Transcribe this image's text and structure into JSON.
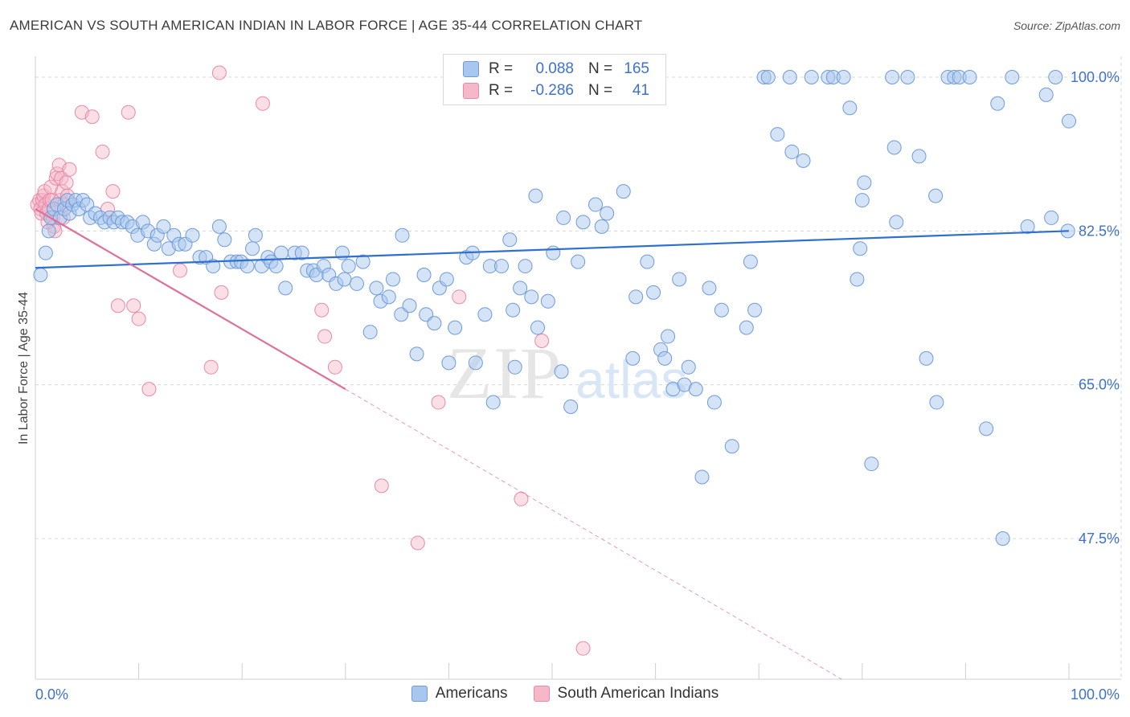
{
  "header": {
    "title": "AMERICAN VS SOUTH AMERICAN INDIAN IN LABOR FORCE | AGE 35-44 CORRELATION CHART",
    "source": "Source: ZipAtlas.com"
  },
  "watermark": {
    "zip": "ZIP",
    "atlas": "atlas"
  },
  "legend": {
    "rows": [
      {
        "r_label": "R =",
        "r_value": "0.088",
        "n_label": "N =",
        "n_value": "165"
      },
      {
        "r_label": "R =",
        "r_value": "-0.286",
        "n_label": "N =",
        "n_value": "41"
      }
    ]
  },
  "bottom_legend": {
    "americans": "Americans",
    "sai": "South American Indians"
  },
  "colors": {
    "americans_fill": "#a9c7ee",
    "americans_stroke": "#6f9bd8",
    "americans_line": "#2f6fcd",
    "sai_fill": "#f5b8c9",
    "sai_stroke": "#e98aa6",
    "sai_line": "#e0709a",
    "grid": "#d8d8d8",
    "tick_label": "#3d72cc"
  },
  "chart_data": {
    "type": "scatter",
    "title": "AMERICAN VS SOUTH AMERICAN INDIAN IN LABOR FORCE | AGE 35-44 CORRELATION CHART",
    "xlabel": "",
    "ylabel": "In Labor Force | Age 35-44",
    "xlim": [
      0,
      100
    ],
    "ylim": [
      30,
      101.5
    ],
    "x_tick_labels": [
      "0.0%",
      "100.0%"
    ],
    "y_ticks": [
      47.5,
      65.0,
      82.5,
      100.0
    ],
    "y_tick_labels": [
      "47.5%",
      "65.0%",
      "82.5%",
      "100.0%"
    ],
    "grid": true,
    "legend_position": "top-center",
    "series": [
      {
        "name": "Americans",
        "R": 0.088,
        "N": 165,
        "trend": {
          "x": [
            0,
            100
          ],
          "y": [
            78.3,
            82.5
          ],
          "style": "solid"
        },
        "points": [
          [
            0.5,
            77.5
          ],
          [
            1.0,
            80.0
          ],
          [
            1.3,
            82.5
          ],
          [
            1.5,
            84.0
          ],
          [
            1.8,
            85.0
          ],
          [
            2.1,
            85.5
          ],
          [
            2.4,
            84.0
          ],
          [
            2.8,
            85.0
          ],
          [
            3.1,
            86.0
          ],
          [
            3.3,
            84.5
          ],
          [
            3.6,
            85.5
          ],
          [
            3.9,
            86.0
          ],
          [
            4.2,
            85.0
          ],
          [
            4.6,
            86.0
          ],
          [
            5.0,
            85.5
          ],
          [
            5.3,
            84.0
          ],
          [
            5.8,
            84.5
          ],
          [
            6.3,
            84.0
          ],
          [
            6.7,
            83.5
          ],
          [
            7.2,
            84.0
          ],
          [
            7.6,
            83.5
          ],
          [
            8.0,
            84.0
          ],
          [
            8.4,
            83.5
          ],
          [
            8.9,
            83.5
          ],
          [
            9.4,
            83.0
          ],
          [
            9.9,
            82.0
          ],
          [
            10.4,
            83.5
          ],
          [
            10.9,
            82.5
          ],
          [
            11.5,
            81.0
          ],
          [
            11.8,
            82.0
          ],
          [
            12.4,
            83.0
          ],
          [
            12.9,
            80.5
          ],
          [
            13.4,
            82.0
          ],
          [
            13.9,
            81.0
          ],
          [
            14.5,
            81.0
          ],
          [
            15.2,
            82.0
          ],
          [
            15.9,
            79.5
          ],
          [
            16.5,
            79.5
          ],
          [
            17.2,
            78.5
          ],
          [
            17.8,
            83.0
          ],
          [
            18.3,
            81.5
          ],
          [
            18.9,
            79.0
          ],
          [
            19.5,
            79.0
          ],
          [
            19.9,
            79.0
          ],
          [
            20.5,
            78.5
          ],
          [
            21.0,
            80.5
          ],
          [
            21.3,
            82.0
          ],
          [
            21.9,
            78.5
          ],
          [
            22.5,
            79.5
          ],
          [
            22.8,
            79.0
          ],
          [
            23.3,
            78.5
          ],
          [
            23.8,
            80.0
          ],
          [
            24.2,
            76.0
          ],
          [
            25.1,
            80.0
          ],
          [
            25.8,
            80.0
          ],
          [
            26.3,
            78.0
          ],
          [
            26.9,
            78.0
          ],
          [
            27.2,
            77.5
          ],
          [
            27.9,
            78.5
          ],
          [
            28.4,
            77.5
          ],
          [
            29.1,
            76.5
          ],
          [
            29.7,
            80.0
          ],
          [
            29.9,
            77.0
          ],
          [
            30.3,
            78.5
          ],
          [
            31.1,
            76.5
          ],
          [
            31.7,
            79.0
          ],
          [
            32.4,
            71.0
          ],
          [
            33.0,
            76.0
          ],
          [
            33.4,
            74.5
          ],
          [
            34.2,
            75.0
          ],
          [
            34.6,
            77.0
          ],
          [
            35.4,
            73.0
          ],
          [
            35.5,
            82.0
          ],
          [
            36.2,
            74.0
          ],
          [
            36.9,
            68.5
          ],
          [
            37.6,
            77.5
          ],
          [
            37.8,
            73.0
          ],
          [
            38.6,
            72.0
          ],
          [
            39.1,
            76.0
          ],
          [
            39.8,
            77.0
          ],
          [
            40.0,
            67.5
          ],
          [
            40.6,
            71.5
          ],
          [
            41.7,
            79.5
          ],
          [
            42.3,
            80.0
          ],
          [
            42.6,
            67.5
          ],
          [
            43.5,
            73.0
          ],
          [
            44.0,
            78.5
          ],
          [
            44.3,
            63.0
          ],
          [
            45.1,
            78.5
          ],
          [
            45.9,
            81.5
          ],
          [
            46.2,
            73.5
          ],
          [
            46.4,
            67.0
          ],
          [
            46.9,
            76.0
          ],
          [
            47.4,
            78.5
          ],
          [
            48.0,
            75.0
          ],
          [
            48.4,
            86.5
          ],
          [
            48.6,
            71.5
          ],
          [
            49.6,
            74.5
          ],
          [
            50.1,
            80.0
          ],
          [
            50.9,
            66.5
          ],
          [
            51.1,
            84.0
          ],
          [
            51.8,
            62.5
          ],
          [
            52.5,
            79.0
          ],
          [
            53.0,
            83.5
          ],
          [
            54.2,
            85.5
          ],
          [
            54.8,
            83.0
          ],
          [
            55.3,
            84.5
          ],
          [
            56.9,
            87.0
          ],
          [
            57.8,
            68.0
          ],
          [
            58.1,
            75.0
          ],
          [
            59.2,
            79.0
          ],
          [
            59.8,
            75.5
          ],
          [
            60.5,
            69.0
          ],
          [
            60.9,
            68.0
          ],
          [
            61.2,
            70.5
          ],
          [
            61.7,
            64.5
          ],
          [
            62.3,
            77.0
          ],
          [
            62.8,
            65.0
          ],
          [
            63.2,
            67.0
          ],
          [
            63.9,
            64.5
          ],
          [
            64.5,
            54.5
          ],
          [
            65.2,
            76.0
          ],
          [
            65.7,
            63.0
          ],
          [
            66.4,
            73.5
          ],
          [
            67.4,
            58.0
          ],
          [
            68.8,
            71.5
          ],
          [
            69.2,
            79.0
          ],
          [
            69.6,
            73.5
          ],
          [
            70.5,
            100.0
          ],
          [
            70.9,
            100.0
          ],
          [
            71.8,
            93.5
          ],
          [
            73.0,
            100.0
          ],
          [
            73.2,
            91.5
          ],
          [
            74.3,
            90.5
          ],
          [
            75.1,
            100.0
          ],
          [
            76.7,
            100.0
          ],
          [
            77.2,
            100.0
          ],
          [
            78.2,
            100.0
          ],
          [
            78.8,
            96.5
          ],
          [
            79.5,
            77.0
          ],
          [
            79.8,
            80.5
          ],
          [
            80.0,
            86.0
          ],
          [
            80.2,
            88.0
          ],
          [
            80.9,
            56.0
          ],
          [
            82.9,
            100.0
          ],
          [
            83.1,
            92.0
          ],
          [
            83.3,
            83.5
          ],
          [
            84.4,
            100.0
          ],
          [
            85.5,
            91.0
          ],
          [
            86.2,
            68.0
          ],
          [
            87.1,
            86.5
          ],
          [
            87.2,
            63.0
          ],
          [
            88.3,
            100.0
          ],
          [
            88.9,
            100.0
          ],
          [
            89.4,
            100.0
          ],
          [
            90.4,
            100.0
          ],
          [
            92.0,
            60.0
          ],
          [
            93.1,
            97.0
          ],
          [
            93.6,
            47.5
          ],
          [
            94.5,
            100.0
          ],
          [
            96.0,
            83.0
          ],
          [
            97.8,
            98.0
          ],
          [
            98.3,
            84.0
          ],
          [
            98.7,
            100.0
          ],
          [
            99.9,
            82.5
          ],
          [
            100.0,
            95.0
          ]
        ]
      },
      {
        "name": "South American Indians",
        "R": -0.286,
        "N": 41,
        "trend": {
          "x": [
            0,
            30,
            78
          ],
          "y": [
            85.0,
            64.5,
            31.5
          ],
          "style": "solid-then-dashed",
          "solid_until_x": 30
        },
        "points": [
          [
            0.2,
            85.5
          ],
          [
            0.4,
            86.0
          ],
          [
            0.5,
            85.0
          ],
          [
            0.6,
            84.5
          ],
          [
            0.7,
            86.0
          ],
          [
            0.8,
            86.5
          ],
          [
            0.9,
            87.0
          ],
          [
            1.0,
            85.5
          ],
          [
            1.1,
            84.5
          ],
          [
            1.2,
            83.5
          ],
          [
            1.3,
            85.0
          ],
          [
            1.4,
            86.0
          ],
          [
            1.5,
            87.5
          ],
          [
            1.6,
            86.0
          ],
          [
            1.7,
            84.0
          ],
          [
            1.8,
            83.0
          ],
          [
            1.9,
            82.5
          ],
          [
            2.0,
            88.5
          ],
          [
            2.1,
            89.0
          ],
          [
            2.3,
            90.0
          ],
          [
            2.4,
            86.0
          ],
          [
            2.5,
            88.5
          ],
          [
            2.6,
            87.0
          ],
          [
            2.7,
            84.0
          ],
          [
            2.8,
            85.5
          ],
          [
            3.0,
            88.0
          ],
          [
            3.1,
            86.5
          ],
          [
            3.3,
            89.5
          ],
          [
            4.5,
            96.0
          ],
          [
            5.5,
            95.5
          ],
          [
            6.5,
            91.5
          ],
          [
            7.0,
            85.0
          ],
          [
            7.5,
            87.0
          ],
          [
            8.0,
            74.0
          ],
          [
            9.0,
            96.0
          ],
          [
            9.5,
            74.0
          ],
          [
            10.0,
            72.5
          ],
          [
            11.0,
            64.5
          ],
          [
            14.0,
            78.0
          ],
          [
            17.0,
            67.0
          ],
          [
            17.8,
            100.5
          ],
          [
            18.0,
            75.5
          ],
          [
            22.0,
            97.0
          ],
          [
            27.7,
            73.5
          ],
          [
            28.0,
            70.5
          ],
          [
            29.0,
            67.0
          ],
          [
            33.5,
            53.5
          ],
          [
            37.0,
            47.0
          ],
          [
            39.0,
            63.0
          ],
          [
            41.0,
            75.0
          ],
          [
            47.0,
            52.0
          ],
          [
            49.0,
            70.0
          ],
          [
            53.0,
            35.0
          ]
        ]
      }
    ]
  }
}
